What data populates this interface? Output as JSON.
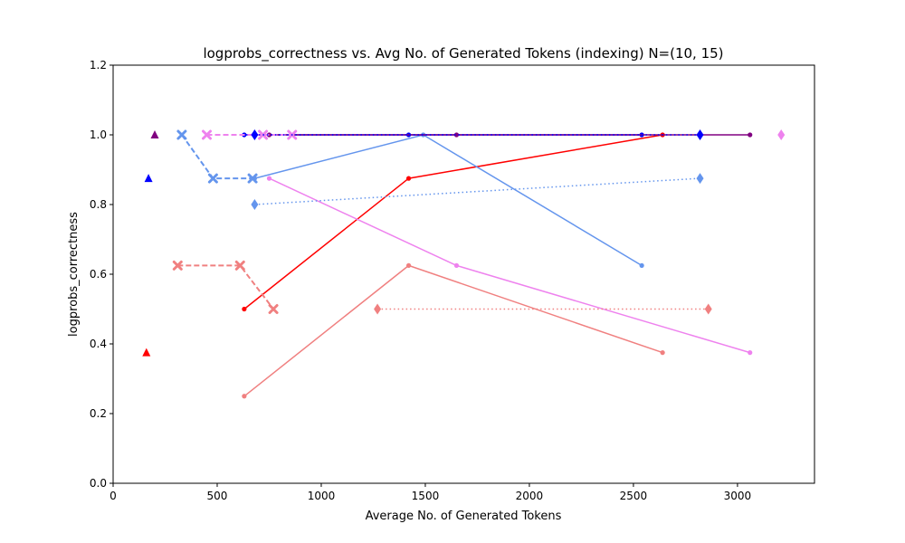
{
  "chart_data": {
    "type": "line",
    "title": "logprobs_correctness vs. Avg No. of Generated Tokens (indexing) N=(10, 15)",
    "xlabel": "Average No. of Generated Tokens",
    "ylabel": "logprobs_correctness",
    "xlim": [
      0,
      3370
    ],
    "ylim": [
      0,
      1.2
    ],
    "xticks": [
      0,
      500,
      1000,
      1500,
      2000,
      2500,
      3000
    ],
    "yticks": [
      0.0,
      0.2,
      0.4,
      0.6,
      0.8,
      1.0,
      1.2
    ],
    "grid": false,
    "series": [
      {
        "color": "#ff0000",
        "linestyle": "solid",
        "marker": "dot",
        "x": [
          630,
          1420,
          2640
        ],
        "y": [
          0.5,
          0.875,
          1.0
        ]
      },
      {
        "color": "#f08080",
        "linestyle": "solid",
        "marker": "dot",
        "x": [
          630,
          1420,
          2640
        ],
        "y": [
          0.25,
          0.625,
          0.375
        ]
      },
      {
        "color": "#6495ed",
        "linestyle": "solid",
        "marker": "dot",
        "x": [
          680,
          1490,
          2540
        ],
        "y": [
          0.875,
          1.0,
          0.625
        ]
      },
      {
        "color": "#ee82ee",
        "linestyle": "solid",
        "marker": "dot",
        "x": [
          750,
          1650,
          3060
        ],
        "y": [
          0.875,
          0.625,
          0.375
        ]
      },
      {
        "color": "#0000ff",
        "linestyle": "solid",
        "marker": "dot",
        "x": [
          630,
          1420,
          2540
        ],
        "y": [
          1.0,
          1.0,
          1.0
        ]
      },
      {
        "color": "#800080",
        "linestyle": "solid",
        "marker": "dot",
        "x": [
          750,
          1650,
          3060
        ],
        "y": [
          1.0,
          1.0,
          1.0
        ]
      },
      {
        "color": "#f08080",
        "linestyle": "dashed",
        "marker": "x",
        "x": [
          310,
          610,
          770
        ],
        "y": [
          0.625,
          0.625,
          0.5
        ]
      },
      {
        "color": "#6495ed",
        "linestyle": "dashed",
        "marker": "x",
        "x": [
          330,
          480,
          670
        ],
        "y": [
          1.0,
          0.875,
          0.875
        ]
      },
      {
        "color": "#ee82ee",
        "linestyle": "dashed",
        "marker": "x",
        "x": [
          450,
          720,
          860
        ],
        "y": [
          1.0,
          1.0,
          1.0
        ]
      },
      {
        "color": "#f08080",
        "linestyle": "dotted",
        "marker": "diamond",
        "x": [
          1270,
          2860
        ],
        "y": [
          0.5,
          0.5
        ]
      },
      {
        "color": "#6495ed",
        "linestyle": "dotted",
        "marker": "diamond",
        "x": [
          680,
          2820
        ],
        "y": [
          0.8,
          0.875
        ]
      },
      {
        "color": "#0000ff",
        "linestyle": "dotted",
        "marker": "diamond",
        "x": [
          680,
          2820
        ],
        "y": [
          1.0,
          1.0
        ]
      },
      {
        "color": "#ee82ee",
        "linestyle": "dotted",
        "marker": "diamond",
        "x": [
          3210
        ],
        "y": [
          1.0
        ]
      },
      {
        "color": "#ff0000",
        "linestyle": "none",
        "marker": "triangle",
        "x": [
          160
        ],
        "y": [
          0.375
        ]
      },
      {
        "color": "#0000ff",
        "linestyle": "none",
        "marker": "triangle",
        "x": [
          170
        ],
        "y": [
          0.875
        ]
      },
      {
        "color": "#800080",
        "linestyle": "none",
        "marker": "triangle",
        "x": [
          200
        ],
        "y": [
          1.0
        ]
      }
    ]
  }
}
